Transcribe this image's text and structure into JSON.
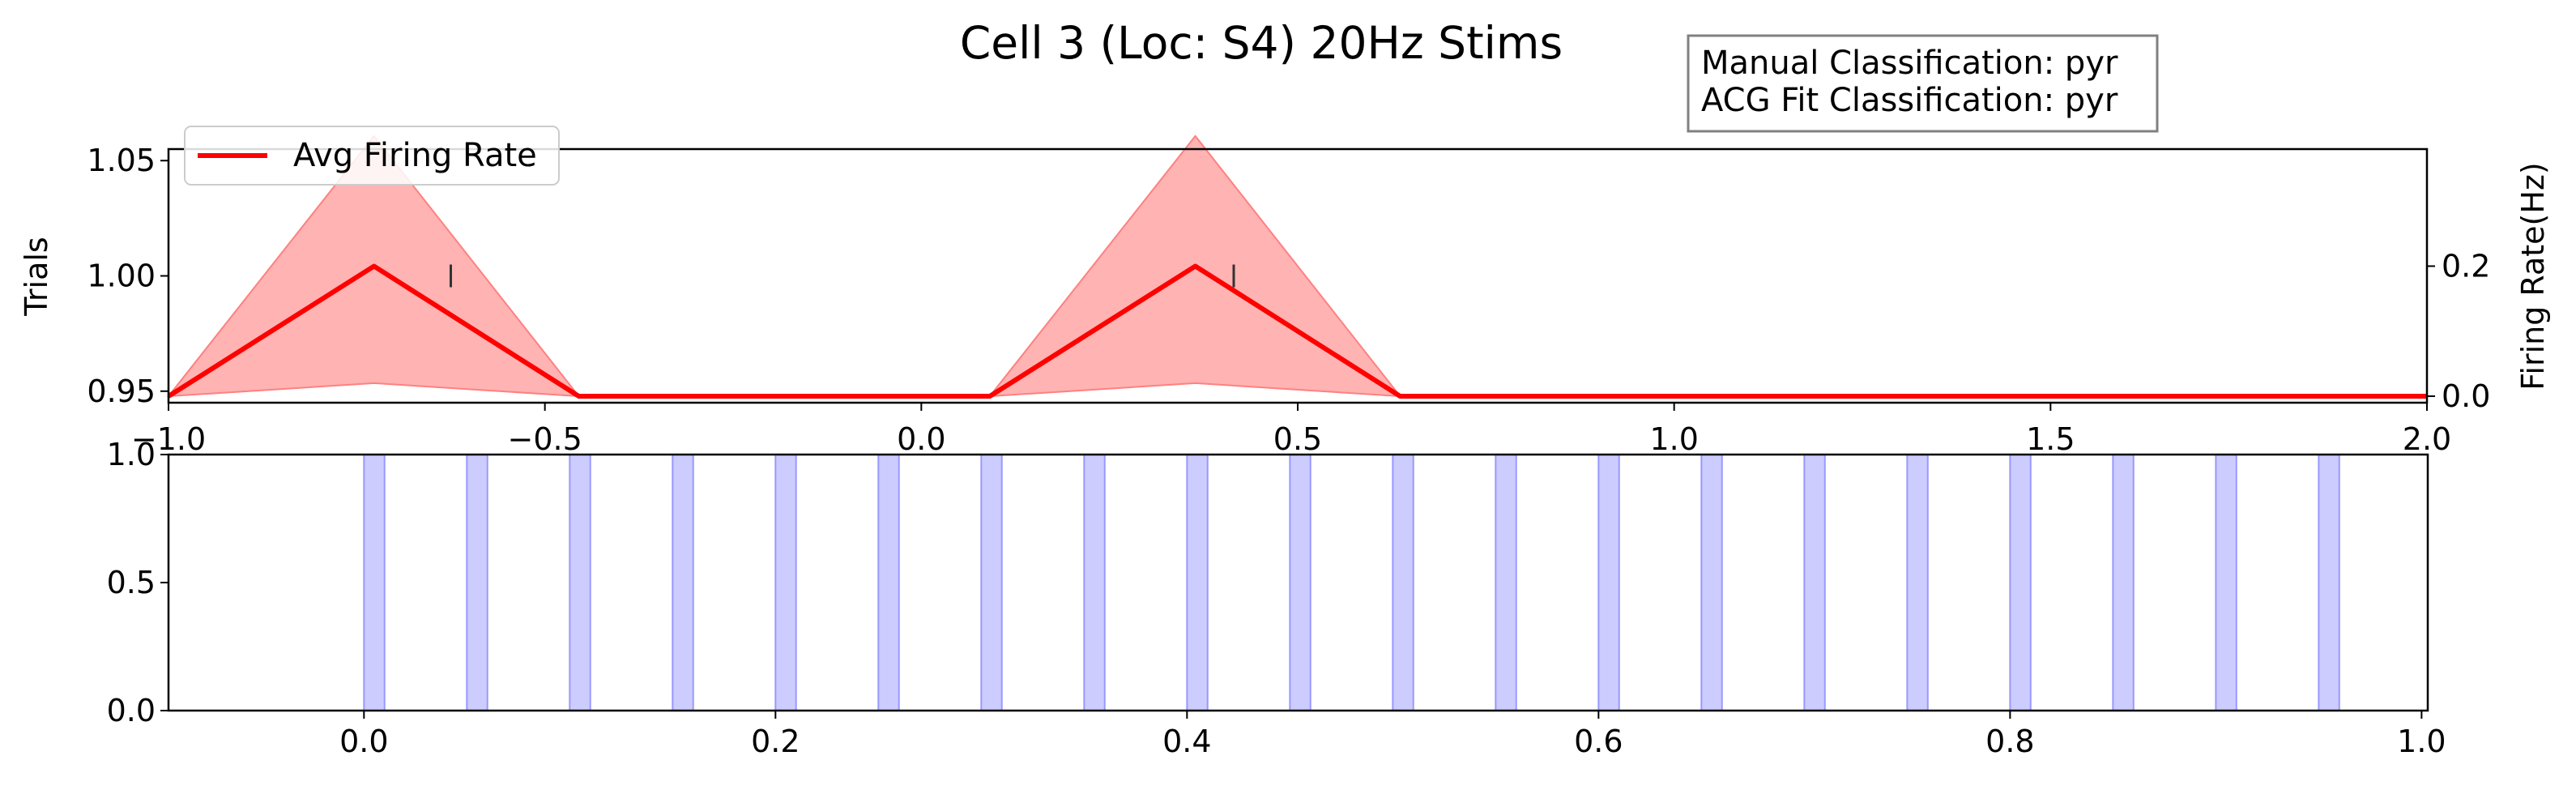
{
  "figure": {
    "title": "Cell 3 (Loc: S4) 20Hz Stims",
    "classification_lines": [
      "Manual Classification: pyr",
      "ACG Fit Classification: pyr"
    ]
  },
  "chart_data": [
    {
      "type": "line",
      "ylabel": "Trials",
      "y2label": "Firing Rate(Hz)",
      "xlim": [
        -1.0,
        2.0
      ],
      "ylim": [
        0.945,
        1.055
      ],
      "y2lim": [
        -0.01,
        0.38
      ],
      "x_ticks": [
        "−1.0",
        "−0.5",
        "0.0",
        "0.5",
        "1.0",
        "1.5",
        "2.0"
      ],
      "y_ticks": [
        "0.95",
        "1.00",
        "1.05"
      ],
      "y2_ticks": [
        "0.0",
        "0.2"
      ],
      "legend": {
        "placement": "upper-left"
      },
      "series": [
        {
          "name": "Avg Firing Rate",
          "color": "#ff0000",
          "band_color": "#ffb3b3",
          "x": [
            -1.0,
            -0.727,
            -0.455,
            -0.182,
            0.091,
            0.364,
            0.636,
            0.909,
            1.182,
            1.455,
            1.727,
            2.0
          ],
          "y": [
            0.0,
            0.2,
            0.0,
            0.0,
            0.0,
            0.2,
            0.0,
            0.0,
            0.0,
            0.0,
            0.0,
            0.0
          ],
          "lower": [
            0.0,
            0.02,
            0.0,
            0.0,
            0.0,
            0.02,
            0.0,
            0.0,
            0.0,
            0.0,
            0.0,
            0.0
          ],
          "upper": [
            0.0,
            0.4,
            0.0,
            0.0,
            0.0,
            0.4,
            0.0,
            0.0,
            0.0,
            0.0,
            0.0,
            0.0
          ]
        }
      ],
      "spikes": [
        {
          "x": -0.625,
          "trial": 1.0
        },
        {
          "x": 0.415,
          "trial": 1.0
        }
      ]
    },
    {
      "type": "bar",
      "xlim": [
        -0.095,
        1.003
      ],
      "ylim": [
        0.0,
        1.0
      ],
      "x_ticks": [
        "0.0",
        "0.2",
        "0.4",
        "0.6",
        "0.8",
        "1.0"
      ],
      "y_ticks": [
        "0.0",
        "0.5",
        "1.0"
      ],
      "stim_color": "#ccccff",
      "stim_edge_color": "#9999ff",
      "stim_width": 0.01,
      "stim_onsets": [
        0.0,
        0.05,
        0.1,
        0.15,
        0.2,
        0.25,
        0.3,
        0.35,
        0.4,
        0.45,
        0.5,
        0.55,
        0.6,
        0.65,
        0.7,
        0.75,
        0.8,
        0.85,
        0.9,
        0.95
      ]
    }
  ]
}
